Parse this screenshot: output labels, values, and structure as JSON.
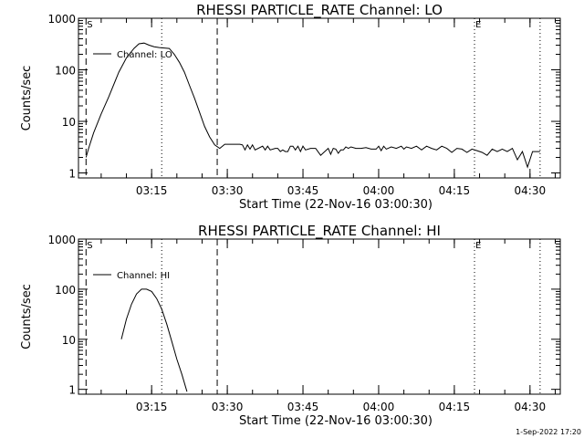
{
  "chart_data": [
    {
      "type": "line",
      "title": "RHESSI PARTICLE_RATE Channel: LO",
      "xlabel": "Start Time (22-Nov-16 03:00:30)",
      "ylabel": "Counts/sec",
      "ylog": true,
      "xlim": [
        0.0,
        95.5
      ],
      "ylim": [
        0.8,
        1000
      ],
      "xticks": [
        {
          "x": 14.5,
          "label": "03:15"
        },
        {
          "x": 29.5,
          "label": "03:30"
        },
        {
          "x": 44.5,
          "label": "03:45"
        },
        {
          "x": 59.5,
          "label": "04:00"
        },
        {
          "x": 74.5,
          "label": "04:15"
        },
        {
          "x": 89.5,
          "label": "04:30"
        }
      ],
      "yticks": [
        {
          "y": 1,
          "label": "1"
        },
        {
          "y": 10,
          "label": "10"
        },
        {
          "y": 100,
          "label": "100"
        },
        {
          "y": 1000,
          "label": "1000"
        }
      ],
      "legend": {
        "entry": "Channel: LO",
        "position": "top-left"
      },
      "markers": [
        {
          "x": 1.5,
          "style": "dashed",
          "label": "S"
        },
        {
          "x": 16.5,
          "style": "dotted",
          "label": ""
        },
        {
          "x": 27.5,
          "style": "dashed",
          "label": ""
        },
        {
          "x": 78.5,
          "style": "dotted",
          "label": "E"
        },
        {
          "x": 91.5,
          "style": "dotted",
          "label": ""
        }
      ],
      "series": [
        {
          "name": "Channel: LO",
          "x": [
            1.5,
            2.0,
            3.0,
            4.5,
            6.0,
            8.0,
            9.5,
            11.0,
            12.0,
            13.0,
            14.0,
            15.0,
            16.0,
            17.0,
            18.0,
            19.0,
            20.0,
            21.0,
            22.0,
            23.0,
            24.0,
            25.0,
            26.0,
            27.0,
            28.0,
            29.0,
            31.0,
            32.0,
            32.5,
            33.0,
            33.5,
            34.0,
            34.5,
            35.0,
            36.5,
            37.0,
            37.5,
            38.0,
            39.0,
            39.5,
            40.0,
            40.5,
            41.0,
            41.5,
            42.0,
            42.5,
            43.0,
            43.5,
            44.0,
            44.5,
            45.0,
            46.0,
            47.0,
            48.0,
            49.5,
            50.0,
            50.5,
            51.0,
            51.5,
            52.0,
            52.5,
            53.0,
            53.5,
            54.0,
            55.0,
            56.0,
            57.0,
            58.0,
            59.0,
            59.5,
            60.0,
            60.5,
            61.0,
            62.0,
            63.0,
            64.0,
            64.5,
            65.0,
            66.0,
            67.0,
            68.0,
            69.0,
            70.0,
            71.0,
            72.0,
            73.0,
            74.0,
            75.0,
            76.0,
            77.0,
            78.0,
            79.0,
            80.0,
            81.0,
            82.0,
            83.0,
            84.0,
            85.0,
            86.0,
            87.0,
            88.0,
            89.0,
            90.0,
            91.0,
            91.5
          ],
          "values": [
            2,
            3,
            6,
            14,
            30,
            90,
            170,
            260,
            320,
            330,
            300,
            280,
            270,
            265,
            260,
            200,
            140,
            90,
            50,
            28,
            15,
            8,
            5,
            3.5,
            3,
            3.6,
            3.6,
            3.6,
            3.5,
            2.8,
            3.5,
            2.9,
            3.5,
            2.8,
            3.3,
            2.8,
            3.3,
            2.8,
            3.0,
            3.0,
            2.6,
            2.8,
            2.6,
            2.6,
            3.3,
            3.3,
            2.8,
            3.3,
            2.6,
            3.3,
            2.8,
            3.0,
            3.0,
            2.2,
            3.0,
            2.3,
            3.0,
            2.9,
            2.4,
            2.8,
            2.8,
            3.2,
            3.0,
            3.2,
            3.0,
            3.0,
            3.1,
            2.9,
            2.9,
            3.3,
            2.7,
            3.3,
            2.9,
            3.2,
            3.0,
            3.3,
            2.9,
            3.2,
            3.0,
            3.3,
            2.8,
            3.3,
            3.0,
            2.8,
            3.3,
            3.0,
            2.5,
            3.0,
            2.9,
            2.5,
            2.9,
            2.7,
            2.5,
            2.2,
            2.9,
            2.6,
            2.9,
            2.6,
            3.0,
            1.8,
            2.6,
            1.3,
            2.6,
            2.6,
            2.6
          ]
        }
      ]
    },
    {
      "type": "line",
      "title": "RHESSI PARTICLE_RATE Channel: HI",
      "xlabel": "Start Time (22-Nov-16 03:00:30)",
      "ylabel": "Counts/sec",
      "ylog": true,
      "xlim": [
        0.0,
        95.5
      ],
      "ylim": [
        0.8,
        1000
      ],
      "xticks": [
        {
          "x": 14.5,
          "label": "03:15"
        },
        {
          "x": 29.5,
          "label": "03:30"
        },
        {
          "x": 44.5,
          "label": "03:45"
        },
        {
          "x": 59.5,
          "label": "04:00"
        },
        {
          "x": 74.5,
          "label": "04:15"
        },
        {
          "x": 89.5,
          "label": "04:30"
        }
      ],
      "yticks": [
        {
          "y": 1,
          "label": "1"
        },
        {
          "y": 10,
          "label": "10"
        },
        {
          "y": 100,
          "label": "100"
        },
        {
          "y": 1000,
          "label": "1000"
        }
      ],
      "legend": {
        "entry": "Channel: HI",
        "position": "top-left"
      },
      "markers": [
        {
          "x": 1.5,
          "style": "dashed",
          "label": "S"
        },
        {
          "x": 16.5,
          "style": "dotted",
          "label": ""
        },
        {
          "x": 27.5,
          "style": "dashed",
          "label": ""
        },
        {
          "x": 78.5,
          "style": "dotted",
          "label": "E"
        },
        {
          "x": 91.5,
          "style": "dotted",
          "label": ""
        }
      ],
      "series": [
        {
          "name": "Channel: HI",
          "x": [
            8.5,
            9.5,
            10.5,
            11.5,
            12.5,
            13.5,
            14.5,
            15.5,
            16.5,
            17.5,
            18.5,
            19.5,
            20.5,
            21.5
          ],
          "values": [
            10,
            25,
            50,
            80,
            100,
            100,
            90,
            65,
            40,
            20,
            9,
            4,
            2,
            0.9
          ]
        }
      ]
    }
  ],
  "footer": {
    "timestamp": "1-Sep-2022 17:20"
  }
}
